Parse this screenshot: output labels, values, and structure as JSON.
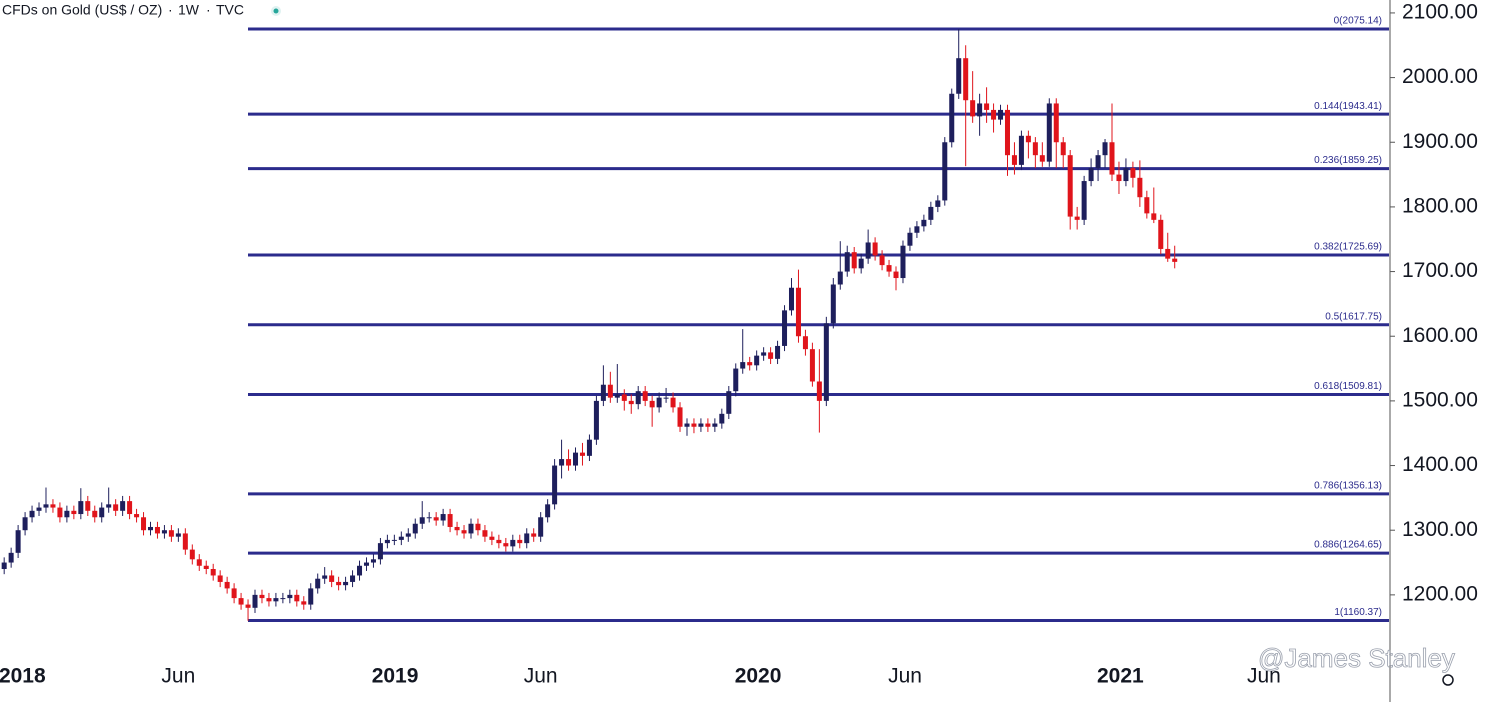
{
  "chart_data": {
    "type": "candlestick",
    "title": "CFDs on Gold (US$ / OZ)",
    "interval": "1W",
    "source": "TVC",
    "watermark": "@James Stanley",
    "up_color": "#1e1f5c",
    "down_color": "#e0141b",
    "fib_color": "#2b2b8c",
    "ylim": [
      1107,
      2120
    ],
    "yticks": [
      {
        "value": 1200,
        "label": "1200.00"
      },
      {
        "value": 1300,
        "label": "1300.00"
      },
      {
        "value": 1400,
        "label": "1400.00"
      },
      {
        "value": 1500,
        "label": "1500.00"
      },
      {
        "value": 1600,
        "label": "1600.00"
      },
      {
        "value": 1700,
        "label": "1700.00"
      },
      {
        "value": 1800,
        "label": "1800.00"
      },
      {
        "value": 1900,
        "label": "1900.00"
      },
      {
        "value": 2000,
        "label": "2000.00"
      },
      {
        "value": 2100,
        "label": "2100.00"
      }
    ],
    "xlim": [
      -0.6,
      198.9
    ],
    "xticks": [
      {
        "value": 2.6,
        "label": "2018"
      },
      {
        "value": 25,
        "label": "Jun"
      },
      {
        "value": 56.1,
        "label": "2019"
      },
      {
        "value": 77,
        "label": "Jun"
      },
      {
        "value": 108.2,
        "label": "2020"
      },
      {
        "value": 129.3,
        "label": "Jun"
      },
      {
        "value": 160.2,
        "label": "2021"
      },
      {
        "value": 180.8,
        "label": "Jun"
      }
    ],
    "fib_levels": [
      {
        "value": 2075.14,
        "label": "0(2075.14)"
      },
      {
        "value": 1943.41,
        "label": "0.144(1943.41)"
      },
      {
        "value": 1859.25,
        "label": "0.236(1859.25)"
      },
      {
        "value": 1725.69,
        "label": "0.382(1725.69)"
      },
      {
        "value": 1617.75,
        "label": "0.5(1617.75)"
      },
      {
        "value": 1509.81,
        "label": "0.618(1509.81)"
      },
      {
        "value": 1356.13,
        "label": "0.786(1356.13)"
      },
      {
        "value": 1264.65,
        "label": "0.886(1264.65)"
      },
      {
        "value": 1160.37,
        "label": "1(1160.37)"
      }
    ],
    "candles": [
      [
        1240,
        1258,
        1232,
        1250
      ],
      [
        1250,
        1273,
        1242,
        1265
      ],
      [
        1265,
        1308,
        1257,
        1300
      ],
      [
        1300,
        1328,
        1292,
        1320
      ],
      [
        1320,
        1338,
        1312,
        1330
      ],
      [
        1330,
        1343,
        1322,
        1335
      ],
      [
        1335,
        1366,
        1327,
        1340
      ],
      [
        1340,
        1348,
        1327,
        1335
      ],
      [
        1335,
        1343,
        1312,
        1320
      ],
      [
        1320,
        1338,
        1312,
        1330
      ],
      [
        1330,
        1338,
        1317,
        1325
      ],
      [
        1325,
        1365,
        1317,
        1345
      ],
      [
        1345,
        1353,
        1322,
        1330
      ],
      [
        1330,
        1338,
        1312,
        1320
      ],
      [
        1320,
        1343,
        1312,
        1335
      ],
      [
        1335,
        1366,
        1327,
        1340
      ],
      [
        1340,
        1348,
        1322,
        1330
      ],
      [
        1330,
        1353,
        1322,
        1345
      ],
      [
        1345,
        1353,
        1317,
        1325
      ],
      [
        1325,
        1333,
        1312,
        1320
      ],
      [
        1320,
        1328,
        1292,
        1300
      ],
      [
        1300,
        1313,
        1292,
        1305
      ],
      [
        1305,
        1313,
        1287,
        1295
      ],
      [
        1295,
        1308,
        1287,
        1300
      ],
      [
        1300,
        1308,
        1282,
        1290
      ],
      [
        1290,
        1303,
        1282,
        1295
      ],
      [
        1295,
        1303,
        1262,
        1270
      ],
      [
        1270,
        1278,
        1247,
        1255
      ],
      [
        1255,
        1263,
        1237,
        1245
      ],
      [
        1245,
        1253,
        1232,
        1240
      ],
      [
        1240,
        1248,
        1222,
        1230
      ],
      [
        1230,
        1238,
        1212,
        1220
      ],
      [
        1220,
        1228,
        1202,
        1210
      ],
      [
        1210,
        1218,
        1187,
        1195
      ],
      [
        1195,
        1203,
        1177,
        1185
      ],
      [
        1185,
        1193,
        1160,
        1180
      ],
      [
        1180,
        1208,
        1172,
        1200
      ],
      [
        1200,
        1208,
        1187,
        1195
      ],
      [
        1195,
        1203,
        1182,
        1190
      ],
      [
        1190,
        1203,
        1182,
        1195
      ],
      [
        1195,
        1203,
        1187,
        1195
      ],
      [
        1195,
        1208,
        1187,
        1200
      ],
      [
        1200,
        1208,
        1182,
        1190
      ],
      [
        1190,
        1198,
        1177,
        1185
      ],
      [
        1185,
        1218,
        1177,
        1210
      ],
      [
        1210,
        1233,
        1202,
        1225
      ],
      [
        1225,
        1243,
        1217,
        1230
      ],
      [
        1230,
        1238,
        1212,
        1220
      ],
      [
        1220,
        1228,
        1207,
        1215
      ],
      [
        1215,
        1228,
        1207,
        1220
      ],
      [
        1220,
        1238,
        1212,
        1230
      ],
      [
        1230,
        1253,
        1222,
        1245
      ],
      [
        1245,
        1258,
        1237,
        1250
      ],
      [
        1250,
        1263,
        1242,
        1255
      ],
      [
        1255,
        1288,
        1247,
        1280
      ],
      [
        1280,
        1293,
        1272,
        1285
      ],
      [
        1285,
        1293,
        1277,
        1285
      ],
      [
        1285,
        1298,
        1277,
        1290
      ],
      [
        1290,
        1303,
        1282,
        1295
      ],
      [
        1295,
        1318,
        1287,
        1310
      ],
      [
        1310,
        1345,
        1302,
        1320
      ],
      [
        1320,
        1328,
        1312,
        1320
      ],
      [
        1320,
        1328,
        1307,
        1315
      ],
      [
        1315,
        1333,
        1307,
        1325
      ],
      [
        1325,
        1333,
        1297,
        1305
      ],
      [
        1305,
        1313,
        1292,
        1300
      ],
      [
        1300,
        1308,
        1287,
        1295
      ],
      [
        1295,
        1318,
        1287,
        1310
      ],
      [
        1310,
        1318,
        1292,
        1300
      ],
      [
        1300,
        1308,
        1282,
        1290
      ],
      [
        1290,
        1298,
        1277,
        1285
      ],
      [
        1285,
        1293,
        1272,
        1280
      ],
      [
        1280,
        1288,
        1267,
        1275
      ],
      [
        1275,
        1293,
        1267,
        1285
      ],
      [
        1285,
        1293,
        1272,
        1280
      ],
      [
        1280,
        1303,
        1272,
        1295
      ],
      [
        1295,
        1303,
        1282,
        1290
      ],
      [
        1290,
        1328,
        1282,
        1320
      ],
      [
        1320,
        1348,
        1312,
        1340
      ],
      [
        1340,
        1410,
        1332,
        1400
      ],
      [
        1400,
        1440,
        1380,
        1410
      ],
      [
        1410,
        1425,
        1392,
        1400
      ],
      [
        1400,
        1428,
        1392,
        1420
      ],
      [
        1420,
        1435,
        1400,
        1415
      ],
      [
        1415,
        1448,
        1407,
        1440
      ],
      [
        1440,
        1508,
        1432,
        1500
      ],
      [
        1500,
        1555,
        1492,
        1525
      ],
      [
        1525,
        1545,
        1497,
        1505
      ],
      [
        1505,
        1557,
        1497,
        1510
      ],
      [
        1510,
        1518,
        1485,
        1500
      ],
      [
        1500,
        1510,
        1480,
        1495
      ],
      [
        1495,
        1523,
        1487,
        1515
      ],
      [
        1515,
        1523,
        1492,
        1500
      ],
      [
        1500,
        1508,
        1460,
        1490
      ],
      [
        1490,
        1513,
        1482,
        1505
      ],
      [
        1505,
        1520,
        1497,
        1505
      ],
      [
        1505,
        1513,
        1482,
        1490
      ],
      [
        1490,
        1498,
        1452,
        1460
      ],
      [
        1460,
        1473,
        1446,
        1465
      ],
      [
        1465,
        1473,
        1450,
        1460
      ],
      [
        1460,
        1473,
        1452,
        1465
      ],
      [
        1465,
        1473,
        1452,
        1460
      ],
      [
        1460,
        1473,
        1452,
        1465
      ],
      [
        1465,
        1488,
        1457,
        1480
      ],
      [
        1480,
        1523,
        1472,
        1515
      ],
      [
        1515,
        1558,
        1507,
        1550
      ],
      [
        1550,
        1611,
        1542,
        1560
      ],
      [
        1560,
        1568,
        1547,
        1555
      ],
      [
        1555,
        1578,
        1547,
        1570
      ],
      [
        1570,
        1583,
        1562,
        1575
      ],
      [
        1575,
        1583,
        1557,
        1565
      ],
      [
        1565,
        1593,
        1557,
        1585
      ],
      [
        1585,
        1648,
        1577,
        1640
      ],
      [
        1640,
        1690,
        1632,
        1675
      ],
      [
        1675,
        1703,
        1590,
        1600
      ],
      [
        1600,
        1610,
        1570,
        1580
      ],
      [
        1580,
        1590,
        1522,
        1530
      ],
      [
        1530,
        1580,
        1451,
        1500
      ],
      [
        1500,
        1630,
        1492,
        1620
      ],
      [
        1620,
        1690,
        1612,
        1680
      ],
      [
        1680,
        1747,
        1672,
        1700
      ],
      [
        1700,
        1740,
        1692,
        1730
      ],
      [
        1730,
        1738,
        1697,
        1705
      ],
      [
        1705,
        1728,
        1697,
        1720
      ],
      [
        1720,
        1765,
        1712,
        1745
      ],
      [
        1745,
        1753,
        1717,
        1725
      ],
      [
        1725,
        1733,
        1702,
        1710
      ],
      [
        1710,
        1718,
        1692,
        1700
      ],
      [
        1700,
        1708,
        1671,
        1690
      ],
      [
        1690,
        1748,
        1682,
        1740
      ],
      [
        1740,
        1768,
        1732,
        1760
      ],
      [
        1760,
        1778,
        1752,
        1770
      ],
      [
        1770,
        1788,
        1762,
        1780
      ],
      [
        1780,
        1808,
        1772,
        1800
      ],
      [
        1800,
        1818,
        1792,
        1810
      ],
      [
        1810,
        1908,
        1802,
        1900
      ],
      [
        1900,
        1983,
        1892,
        1975
      ],
      [
        1975,
        2075,
        1967,
        2030
      ],
      [
        2030,
        2050,
        1863,
        1965
      ],
      [
        1965,
        2010,
        1930,
        1940
      ],
      [
        1940,
        1975,
        1910,
        1960
      ],
      [
        1960,
        1985,
        1930,
        1950
      ],
      [
        1950,
        1960,
        1915,
        1935
      ],
      [
        1935,
        1958,
        1927,
        1950
      ],
      [
        1950,
        1958,
        1848,
        1880
      ],
      [
        1880,
        1900,
        1850,
        1865
      ],
      [
        1865,
        1918,
        1857,
        1910
      ],
      [
        1910,
        1918,
        1875,
        1900
      ],
      [
        1900,
        1908,
        1860,
        1880
      ],
      [
        1880,
        1900,
        1862,
        1870
      ],
      [
        1870,
        1968,
        1862,
        1960
      ],
      [
        1960,
        1968,
        1860,
        1900
      ],
      [
        1900,
        1908,
        1860,
        1880
      ],
      [
        1880,
        1888,
        1765,
        1785
      ],
      [
        1785,
        1800,
        1765,
        1780
      ],
      [
        1780,
        1848,
        1772,
        1840
      ],
      [
        1840,
        1875,
        1832,
        1860
      ],
      [
        1860,
        1888,
        1840,
        1880
      ],
      [
        1880,
        1905,
        1860,
        1900
      ],
      [
        1900,
        1960,
        1840,
        1850
      ],
      [
        1850,
        1870,
        1820,
        1840
      ],
      [
        1840,
        1875,
        1832,
        1860
      ],
      [
        1860,
        1870,
        1830,
        1845
      ],
      [
        1845,
        1872,
        1800,
        1815
      ],
      [
        1815,
        1825,
        1782,
        1790
      ],
      [
        1790,
        1830,
        1775,
        1780
      ],
      [
        1780,
        1788,
        1727,
        1735
      ],
      [
        1735,
        1760,
        1715,
        1720
      ],
      [
        1720,
        1740,
        1705,
        1715
      ]
    ]
  }
}
